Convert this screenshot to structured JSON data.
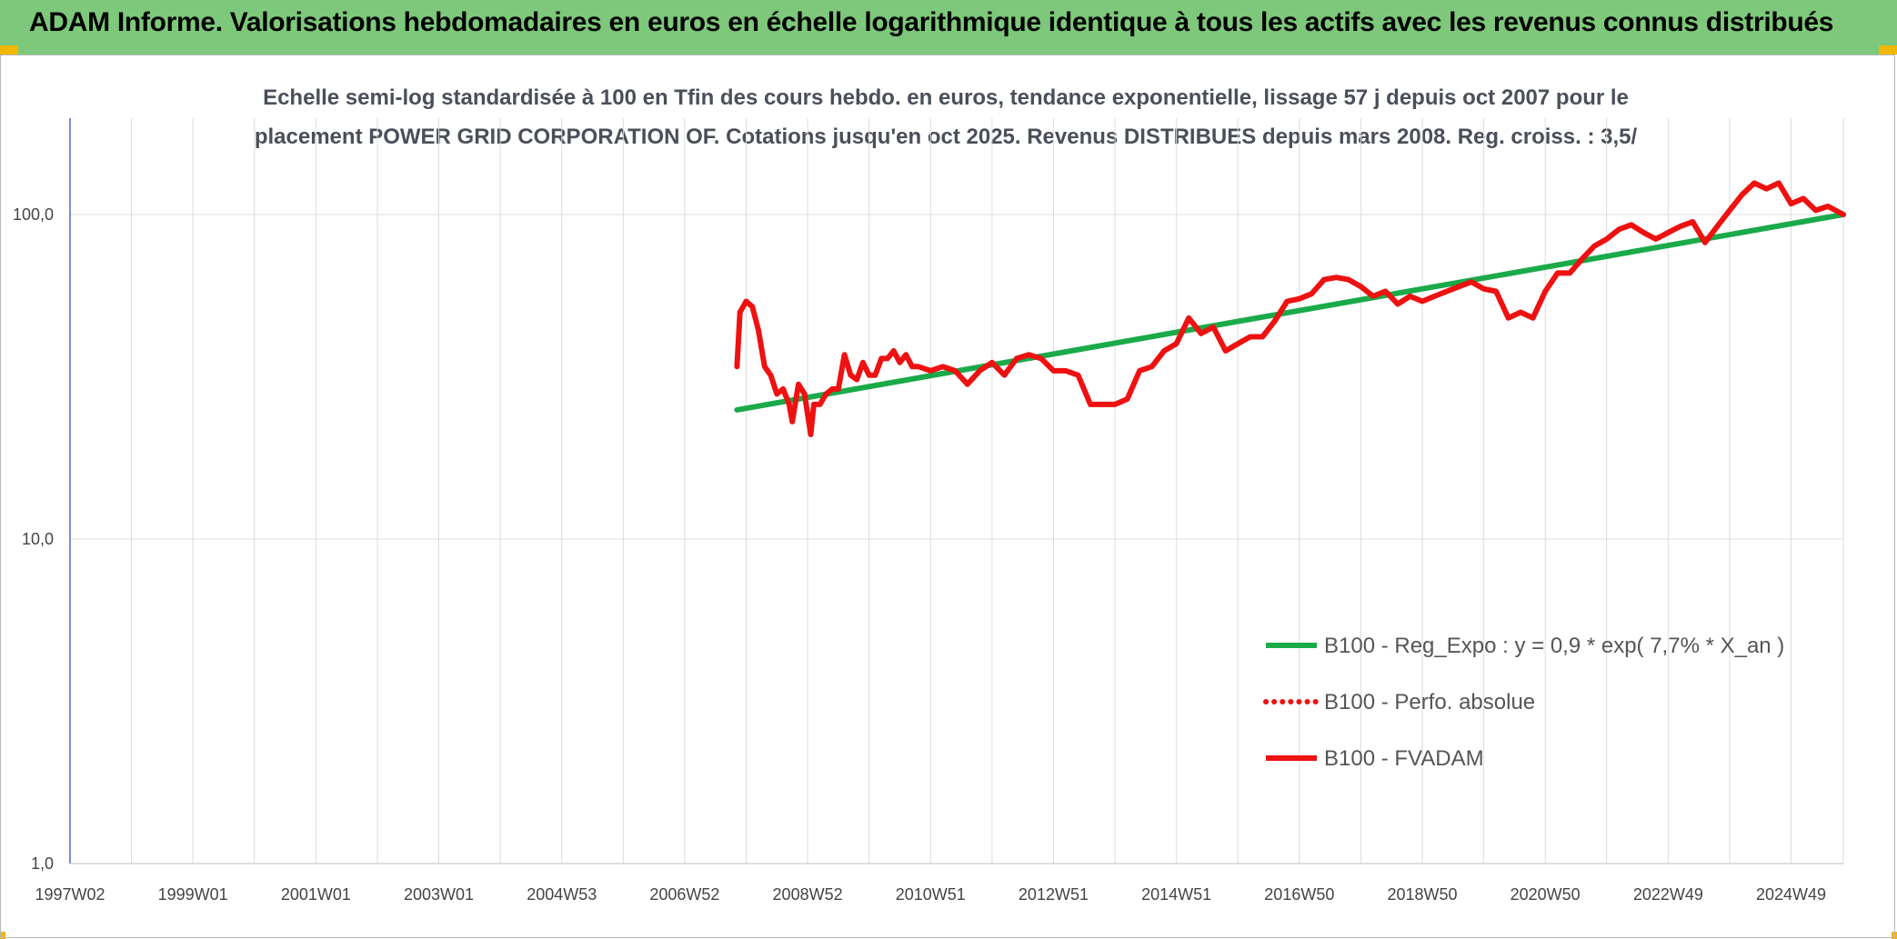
{
  "header": {
    "title": "ADAM Informe. Valorisations hebdomadaires en euros en échelle logarithmique identique à tous les actifs avec les revenus connus distribués"
  },
  "colors": {
    "header_bg": "#7dc87a",
    "corner_accent": "#f2b705",
    "trend_line": "#1aaa4a",
    "series_line": "#ee1111",
    "grid": "#dddddd",
    "y_axis": "#4472c4"
  },
  "chart_data": {
    "type": "line",
    "title_line1": "Echelle semi-log standardisée à 100 en Tfin des cours hebdo. en euros, tendance exponentielle, lissage 57 j depuis oct 2007 pour le",
    "title_line2": "placement POWER GRID CORPORATION OF. Cotations jusqu'en oct 2025. Revenus DISTRIBUES depuis mars 2008. Reg. croiss. : 3,5/",
    "y_scale": "log",
    "ylim": [
      1,
      180
    ],
    "y_ticks": [
      {
        "value": 100,
        "label": "100,0"
      },
      {
        "value": 10,
        "label": "10,0"
      },
      {
        "value": 1,
        "label": "1,0"
      }
    ],
    "xlim": [
      1997.0,
      2025.85
    ],
    "x_ticks": [
      {
        "x": 1997.0,
        "label": "1997W02"
      },
      {
        "x": 1999.0,
        "label": "1999W01"
      },
      {
        "x": 2001.0,
        "label": "2001W01"
      },
      {
        "x": 2003.0,
        "label": "2003W01"
      },
      {
        "x": 2005.0,
        "label": "2004W53"
      },
      {
        "x": 2007.0,
        "label": "2006W52"
      },
      {
        "x": 2009.0,
        "label": "2008W52"
      },
      {
        "x": 2011.0,
        "label": "2010W51"
      },
      {
        "x": 2013.0,
        "label": "2012W51"
      },
      {
        "x": 2015.0,
        "label": "2014W51"
      },
      {
        "x": 2017.0,
        "label": "2016W50"
      },
      {
        "x": 2019.0,
        "label": "2018W50"
      },
      {
        "x": 2021.0,
        "label": "2020W50"
      },
      {
        "x": 2023.0,
        "label": "2022W49"
      },
      {
        "x": 2025.0,
        "label": "2024W49"
      }
    ],
    "grid": true,
    "legend_position": "bottom-right",
    "series": [
      {
        "name": "B100 - Reg_Expo : y = 0,9 * exp( 7,7% *  X_an )",
        "style": "solid",
        "color": "#1aaa4a",
        "x": [
          2007.85,
          2025.85
        ],
        "y": [
          25,
          100
        ]
      },
      {
        "name": "B100 - Perfo. absolue",
        "style": "dotted",
        "color": "#ee1111",
        "x": [],
        "y": []
      },
      {
        "name": "B100 - FVADAM",
        "style": "solid",
        "color": "#ee1111",
        "x": [
          2007.85,
          2007.9,
          2008.0,
          2008.1,
          2008.2,
          2008.3,
          2008.4,
          2008.5,
          2008.6,
          2008.7,
          2008.75,
          2008.85,
          2008.95,
          2009.05,
          2009.1,
          2009.2,
          2009.3,
          2009.4,
          2009.5,
          2009.6,
          2009.7,
          2009.8,
          2009.9,
          2010.0,
          2010.1,
          2010.2,
          2010.3,
          2010.4,
          2010.5,
          2010.6,
          2010.7,
          2010.8,
          2011.0,
          2011.2,
          2011.4,
          2011.6,
          2011.8,
          2012.0,
          2012.2,
          2012.4,
          2012.6,
          2012.8,
          2013.0,
          2013.2,
          2013.4,
          2013.6,
          2013.8,
          2014.0,
          2014.2,
          2014.4,
          2014.6,
          2014.8,
          2015.0,
          2015.2,
          2015.4,
          2015.6,
          2015.8,
          2016.0,
          2016.2,
          2016.4,
          2016.6,
          2016.8,
          2017.0,
          2017.2,
          2017.4,
          2017.6,
          2017.8,
          2018.0,
          2018.2,
          2018.4,
          2018.6,
          2018.8,
          2019.0,
          2019.2,
          2019.4,
          2019.6,
          2019.8,
          2020.0,
          2020.2,
          2020.4,
          2020.6,
          2020.8,
          2021.0,
          2021.2,
          2021.4,
          2021.6,
          2021.8,
          2022.0,
          2022.2,
          2022.4,
          2022.6,
          2022.8,
          2023.0,
          2023.2,
          2023.4,
          2023.6,
          2023.8,
          2024.0,
          2024.2,
          2024.4,
          2024.6,
          2024.8,
          2025.0,
          2025.2,
          2025.4,
          2025.6,
          2025.85
        ],
        "y": [
          34,
          50,
          54,
          52,
          44,
          34,
          32,
          28,
          29,
          26,
          23,
          30,
          28,
          21,
          26,
          26,
          28,
          29,
          29,
          37,
          32,
          31,
          35,
          32,
          32,
          36,
          36,
          38,
          35,
          37,
          34,
          34,
          33,
          34,
          33,
          30,
          33,
          35,
          32,
          36,
          37,
          36,
          33,
          33,
          32,
          26,
          26,
          26,
          27,
          33,
          34,
          38,
          40,
          48,
          43,
          45,
          38,
          40,
          42,
          42,
          47,
          54,
          55,
          57,
          63,
          64,
          63,
          60,
          56,
          58,
          53,
          56,
          54,
          56,
          58,
          60,
          62,
          59,
          58,
          48,
          50,
          48,
          58,
          66,
          66,
          73,
          80,
          84,
          90,
          93,
          88,
          84,
          88,
          92,
          95,
          82,
          92,
          103,
          115,
          125,
          120,
          125,
          108,
          112,
          103,
          106,
          100
        ]
      }
    ]
  }
}
